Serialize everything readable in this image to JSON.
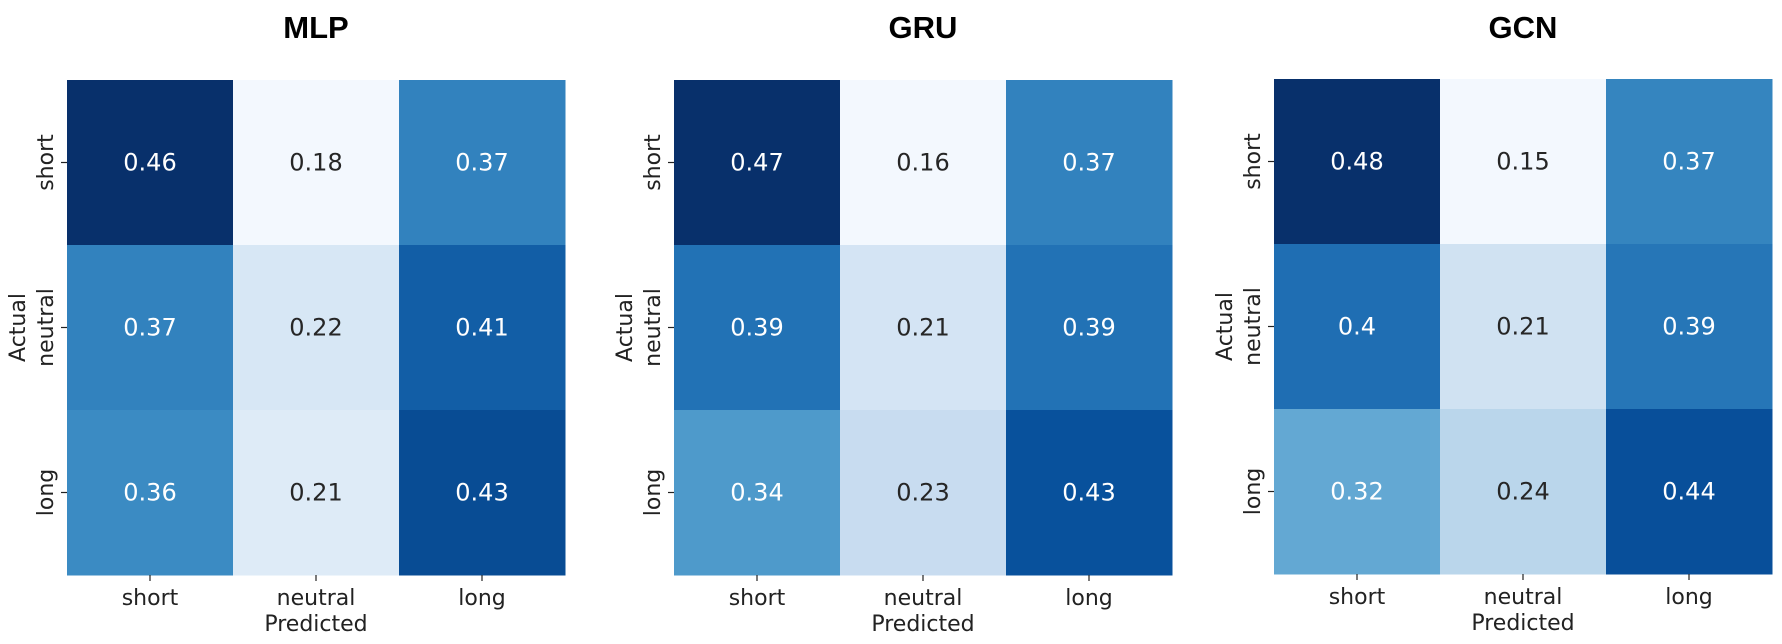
{
  "chart_data": [
    {
      "type": "heatmap",
      "title": "MLP",
      "xlabel": "Predicted",
      "ylabel": "Actual",
      "x_categories": [
        "short",
        "neutral",
        "long"
      ],
      "y_categories": [
        "short",
        "neutral",
        "long"
      ],
      "values": [
        [
          0.46,
          0.18,
          0.37
        ],
        [
          0.37,
          0.22,
          0.41
        ],
        [
          0.36,
          0.21,
          0.43
        ]
      ],
      "colormap": "Blues",
      "colorbar": false
    },
    {
      "type": "heatmap",
      "title": "GRU",
      "xlabel": "Predicted",
      "ylabel": "Actual",
      "x_categories": [
        "short",
        "neutral",
        "long"
      ],
      "y_categories": [
        "short",
        "neutral",
        "long"
      ],
      "values": [
        [
          0.47,
          0.16,
          0.37
        ],
        [
          0.39,
          0.21,
          0.39
        ],
        [
          0.34,
          0.23,
          0.43
        ]
      ],
      "colormap": "Blues",
      "colorbar": false
    },
    {
      "type": "heatmap",
      "title": "GCN",
      "xlabel": "Predicted",
      "ylabel": "Actual",
      "x_categories": [
        "short",
        "neutral",
        "long"
      ],
      "y_categories": [
        "short",
        "neutral",
        "long"
      ],
      "values": [
        [
          0.48,
          0.15,
          0.37
        ],
        [
          0.4,
          0.21,
          0.39
        ],
        [
          0.32,
          0.24,
          0.44
        ]
      ],
      "colormap": "Blues",
      "colorbar": false
    }
  ]
}
